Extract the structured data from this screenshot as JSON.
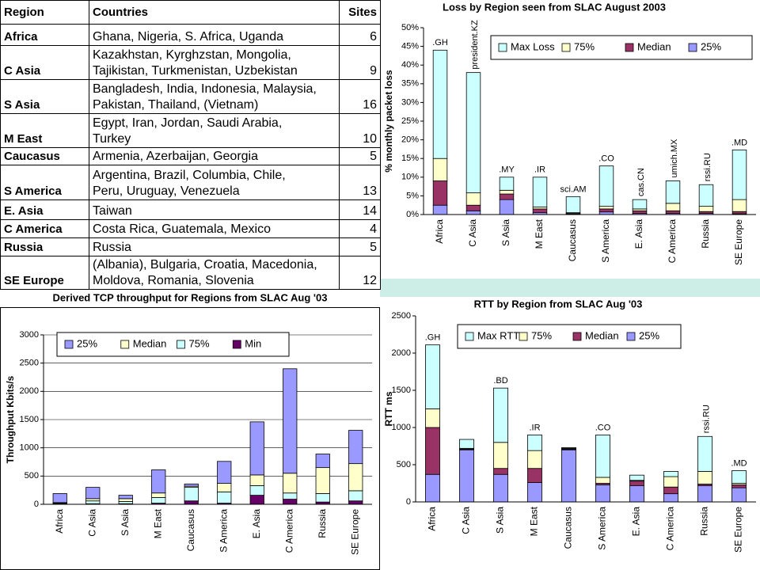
{
  "table": {
    "header": [
      "Region",
      "Countries",
      "Sites"
    ],
    "rows": [
      {
        "region": "Africa",
        "countries": [
          "Ghana, Nigeria, S. Africa, Uganda"
        ],
        "sites": 6
      },
      {
        "region": "C Asia",
        "countries": [
          "Kazakhstan, Kyrghzstan, Mongolia,",
          "Tajikistan, Turkmenistan, Uzbekistan"
        ],
        "sites": 9
      },
      {
        "region": "S Asia",
        "countries": [
          "Bangladesh, India, Indonesia, Malaysia,",
          "Pakistan, Thailand, (Vietnam)"
        ],
        "sites": 16
      },
      {
        "region": "M East",
        "countries": [
          "Egypt, Iran, Jordan, Saudi Arabia,",
          "Turkey"
        ],
        "sites": 10
      },
      {
        "region": "Caucasus",
        "countries": [
          "Armenia, Azerbaijan, Georgia"
        ],
        "sites": 5
      },
      {
        "region": "S America",
        "countries": [
          "Argentina, Brazil, Columbia, Chile,",
          "Peru, Uruguay, Venezuela"
        ],
        "sites": 13
      },
      {
        "region": "E. Asia",
        "countries": [
          "Taiwan"
        ],
        "sites": 14
      },
      {
        "region": "C America",
        "countries": [
          "Costa Rica, Guatemala, Mexico"
        ],
        "sites": 4
      },
      {
        "region": "Russia",
        "countries": [
          "Russia"
        ],
        "sites": 5
      },
      {
        "region": "SE Europe",
        "countries": [
          "(Albania), Bulgaria, Croatia, Macedonia,",
          "Moldova, Romania, Slovenia"
        ],
        "sites": 12
      }
    ]
  },
  "chart_data": [
    {
      "type": "stacked_bar",
      "title": "Loss by Region seen from SLAC August 2003",
      "y_label": "% monthly packet loss",
      "categories": [
        "Africa",
        "C Asia",
        "S Asia",
        "M East",
        "Caucasus",
        "S America",
        "E. Asia",
        "C America",
        "Russia",
        "SE Europe"
      ],
      "series": [
        {
          "name": "Max Loss",
          "color": "#ccffff",
          "values": [
            29,
            32.2,
            3.5,
            8,
            4.3,
            10.8,
            2.5,
            6,
            5.8,
            13.3
          ]
        },
        {
          "name": "75%",
          "color": "#ffffcc",
          "values": [
            6,
            3.3,
            1,
            0.5,
            0.2,
            0.7,
            0.5,
            2,
            1.4,
            3.2
          ]
        },
        {
          "name": "Median",
          "color": "#993366",
          "values": [
            6.5,
            1.5,
            1.5,
            1,
            0.1,
            0.8,
            0.7,
            0.7,
            0.5,
            0.6
          ]
        },
        {
          "name": "25%",
          "color": "#9999ff",
          "values": [
            2.5,
            1,
            4,
            0.5,
            0.2,
            0.7,
            0.3,
            0.3,
            0.3,
            0.2
          ]
        }
      ],
      "bar_labels": [
        ".GH",
        "president.KZ",
        ".MY",
        ".IR",
        "sci.AM",
        ".CO",
        "cas.CN",
        "umich.MX",
        "rssi.RU",
        ".MD"
      ],
      "ylim": [
        0,
        50
      ],
      "yticks": [
        {
          "value": 0,
          "label": "0%"
        },
        {
          "value": 5,
          "label": "5%"
        },
        {
          "value": 10,
          "label": "10%"
        },
        {
          "value": 15,
          "label": "15%"
        },
        {
          "value": 20,
          "label": "20%"
        },
        {
          "value": 25,
          "label": "25%"
        },
        {
          "value": 30,
          "label": "30%"
        },
        {
          "value": 35,
          "label": "35%"
        },
        {
          "value": 40,
          "label": "40%"
        },
        {
          "value": 45,
          "label": "45%"
        },
        {
          "value": 50,
          "label": "50%"
        }
      ],
      "grid": false,
      "legend": "top"
    },
    {
      "type": "stacked_bar",
      "title": "Derived TCP throughput for Regions from SLAC Aug '03",
      "y_label": "Throughput Kbits/s",
      "categories": [
        "Africa",
        "C Asia",
        "S Asia",
        "M East",
        "Caucasus",
        "S America",
        "E. Asia",
        "C America",
        "Russia",
        "SE Europe"
      ],
      "series": [
        {
          "name": "25%",
          "color": "#9999ff",
          "values": [
            160,
            200,
            60,
            410,
            40,
            390,
            940,
            1850,
            240,
            590
          ]
        },
        {
          "name": "Median",
          "color": "#ffffcc",
          "values": [
            10,
            40,
            50,
            80,
            20,
            150,
            190,
            350,
            460,
            480
          ]
        },
        {
          "name": "75%",
          "color": "#ccffff",
          "values": [
            10,
            50,
            40,
            100,
            240,
            200,
            170,
            110,
            150,
            180
          ]
        },
        {
          "name": "Min",
          "color": "#660066",
          "values": [
            10,
            10,
            10,
            20,
            60,
            20,
            160,
            90,
            40,
            60
          ]
        }
      ],
      "ylim": [
        0,
        3000
      ],
      "yticks": [
        0,
        500,
        1000,
        1500,
        2000,
        2500,
        3000
      ],
      "grid": true,
      "legend": "top left"
    },
    {
      "type": "stacked_bar",
      "title": "RTT by Region from SLAC Aug '03",
      "y_label": "RTT ms",
      "categories": [
        "Africa",
        "C Asia",
        "S Asia",
        "M East",
        "Caucasus",
        "S America",
        "E. Asia",
        "C America",
        "Russia",
        "SE Europe"
      ],
      "series": [
        {
          "name": "Max RTT",
          "color": "#ccffff",
          "values": [
            860,
            120,
            730,
            210,
            10,
            570,
            70,
            70,
            470,
            170
          ]
        },
        {
          "name": "75%",
          "color": "#ffffcc",
          "values": [
            250,
            10,
            350,
            240,
            10,
            80,
            10,
            140,
            170,
            20
          ]
        },
        {
          "name": "Median",
          "color": "#993366",
          "values": [
            630,
            10,
            80,
            190,
            10,
            20,
            60,
            90,
            20,
            40
          ]
        },
        {
          "name": "25%",
          "color": "#9999ff",
          "values": [
            370,
            700,
            370,
            260,
            700,
            230,
            220,
            110,
            220,
            190
          ]
        }
      ],
      "bar_labels": [
        ".GH",
        null,
        ".BD",
        ".IR",
        null,
        ".CO",
        null,
        null,
        "rssi.RU",
        ".MD"
      ],
      "ylim": [
        0,
        2500
      ],
      "yticks": [
        0,
        500,
        1000,
        1500,
        2000,
        2500
      ],
      "grid": false,
      "legend": "top left"
    }
  ]
}
